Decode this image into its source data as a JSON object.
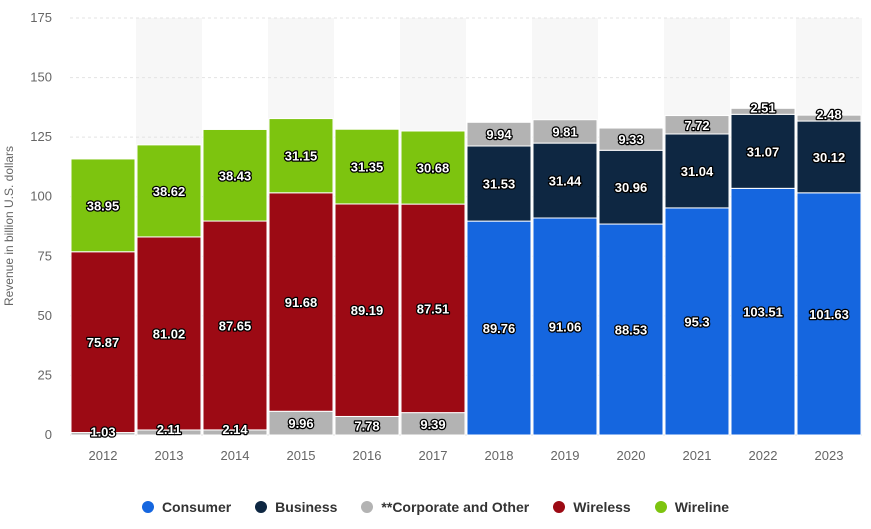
{
  "chart_data": {
    "type": "bar",
    "stacked": true,
    "categories": [
      "2012",
      "2013",
      "2014",
      "2015",
      "2016",
      "2017",
      "2018",
      "2019",
      "2020",
      "2021",
      "2022",
      "2023"
    ],
    "ylabel": "Revenue in billion U.S. dollars",
    "xlabel": "",
    "ylim": [
      0,
      175
    ],
    "yticks": [
      0,
      25,
      50,
      75,
      100,
      125,
      150,
      175
    ],
    "grid": true,
    "legend_position": "bottom",
    "series": [
      {
        "name": "**Corporate and Other",
        "color": "#b3b3b3",
        "values": [
          1.03,
          2.11,
          2.14,
          9.96,
          7.78,
          9.39,
          9.94,
          9.81,
          9.33,
          7.72,
          2.51,
          2.48
        ]
      },
      {
        "name": "Wireless",
        "color": "#9c0a14",
        "values": [
          75.87,
          81.02,
          87.65,
          91.68,
          89.19,
          87.51,
          null,
          null,
          null,
          null,
          null,
          null
        ]
      },
      {
        "name": "Wireline",
        "color": "#7dc40f",
        "values": [
          38.95,
          38.62,
          38.43,
          31.15,
          31.35,
          30.68,
          null,
          null,
          null,
          null,
          null,
          null
        ]
      },
      {
        "name": "Consumer",
        "color": "#1566df",
        "values": [
          null,
          null,
          null,
          null,
          null,
          null,
          89.76,
          91.06,
          88.53,
          95.3,
          103.51,
          101.63
        ]
      },
      {
        "name": "Business",
        "color": "#0e2742",
        "values": [
          null,
          null,
          null,
          null,
          null,
          null,
          31.53,
          31.44,
          30.96,
          31.04,
          31.07,
          30.12
        ]
      }
    ],
    "label_order": {
      "early": [
        "**Corporate and Other",
        "Wireless",
        "Wireline"
      ],
      "late": [
        "Consumer",
        "Business",
        "**Corporate and Other"
      ]
    },
    "legend": [
      {
        "name": "Consumer",
        "color": "#1566df"
      },
      {
        "name": "Business",
        "color": "#0e2742"
      },
      {
        "name": "**Corporate and Other",
        "color": "#b3b3b3"
      },
      {
        "name": "Wireless",
        "color": "#9c0a14"
      },
      {
        "name": "Wireline",
        "color": "#7dc40f"
      }
    ]
  }
}
